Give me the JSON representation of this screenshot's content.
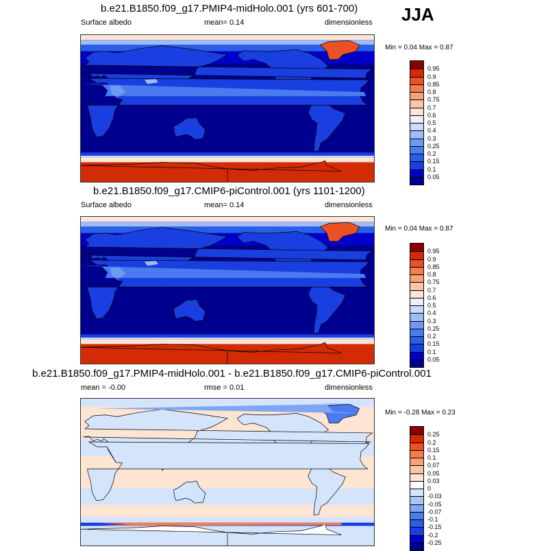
{
  "season": "JJA",
  "chart_data": [
    {
      "type": "heatmap",
      "title": "b.e21.B1850.f09_g17.PMIP4-midHolo.001 (yrs 601-700)",
      "left_label": "Surface albedo",
      "mean_text": "mean=   0.14",
      "units": "dimensionless",
      "minmax_text": "Min =   0.04 Max =   0.87",
      "min": 0.04,
      "max": 0.87,
      "mean": 0.14,
      "levels": [
        "0.05",
        "0.1",
        "0.15",
        "0.2",
        "0.25",
        "0.3",
        "0.4",
        "0.5",
        "0.6",
        "0.7",
        "0.75",
        "0.8",
        "0.85",
        "0.9",
        "0.95"
      ],
      "colors": [
        "#00008f",
        "#0000cc",
        "#1a3fe0",
        "#2b5ee8",
        "#4a7cf0",
        "#6f9af3",
        "#9ebdf7",
        "#c9dcfa",
        "#eaf2fd",
        "#fde4d3",
        "#fbc5a6",
        "#f8a27a",
        "#f47c4e",
        "#ea5125",
        "#d32b06",
        "#8b0000"
      ]
    },
    {
      "type": "heatmap",
      "title": "b.e21.B1850.f09_g17.CMIP6-piControl.001 (yrs 1101-1200)",
      "left_label": "Surface albedo",
      "mean_text": "mean=   0.14",
      "units": "dimensionless",
      "minmax_text": "Min =   0.04 Max =   0.87",
      "min": 0.04,
      "max": 0.87,
      "mean": 0.14,
      "levels": [
        "0.05",
        "0.1",
        "0.15",
        "0.2",
        "0.25",
        "0.3",
        "0.4",
        "0.5",
        "0.6",
        "0.7",
        "0.75",
        "0.8",
        "0.85",
        "0.9",
        "0.95"
      ],
      "colors": [
        "#00008f",
        "#0000cc",
        "#1a3fe0",
        "#2b5ee8",
        "#4a7cf0",
        "#6f9af3",
        "#9ebdf7",
        "#c9dcfa",
        "#eaf2fd",
        "#fde4d3",
        "#fbc5a6",
        "#f8a27a",
        "#f47c4e",
        "#ea5125",
        "#d32b06",
        "#8b0000"
      ]
    },
    {
      "type": "heatmap",
      "title": "b.e21.B1850.f09_g17.PMIP4-midHolo.001 - b.e21.B1850.f09_g17.CMIP6-piControl.001",
      "left_label": "mean =  -0.00",
      "mean_text": "rmse =   0.01",
      "units": "dimensionless",
      "minmax_text": "Min =  -0.28 Max =   0.23",
      "min": -0.28,
      "max": 0.23,
      "mean": -0.0,
      "rmse": 0.01,
      "levels": [
        "-0.25",
        "-0.2",
        "-0.15",
        "-0.1",
        "-0.07",
        "-0.05",
        "-0.03",
        "0",
        "0.03",
        "0.05",
        "0.07",
        "0.1",
        "0.15",
        "0.2",
        "0.25"
      ],
      "colors": [
        "#00008f",
        "#0000cc",
        "#1a3fe0",
        "#2b5ee8",
        "#4a7cf0",
        "#7fa6f2",
        "#a9c6f7",
        "#d4e4fb",
        "#ffffff",
        "#fde4d3",
        "#fbc5a6",
        "#f8a27a",
        "#f47c4e",
        "#ea5125",
        "#d32b06",
        "#8b0000"
      ]
    }
  ]
}
